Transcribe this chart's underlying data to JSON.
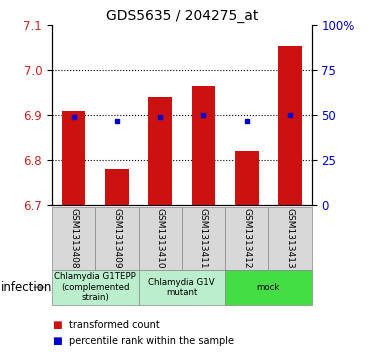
{
  "title": "GDS5635 / 204275_at",
  "samples": [
    "GSM1313408",
    "GSM1313409",
    "GSM1313410",
    "GSM1313411",
    "GSM1313412",
    "GSM1313413"
  ],
  "bar_values": [
    6.91,
    6.78,
    6.94,
    6.965,
    6.82,
    7.055
  ],
  "dot_values": [
    49,
    47,
    49,
    50,
    47,
    50
  ],
  "ylim_left": [
    6.7,
    7.1
  ],
  "ylim_right": [
    0,
    100
  ],
  "yticks_left": [
    6.7,
    6.8,
    6.9,
    7.0,
    7.1
  ],
  "yticks_right": [
    0,
    25,
    50,
    75,
    100
  ],
  "ytick_labels_right": [
    "0",
    "25",
    "50",
    "75",
    "100%"
  ],
  "bar_color": "#CC1111",
  "dot_color": "#0000CC",
  "bar_bottom": 6.7,
  "group_labels": [
    "Chlamydia G1TEPP\n(complemented\nstrain)",
    "Chlamydia G1V\nmutant",
    "mock"
  ],
  "group_colors": [
    "#bbeecc",
    "#bbeecc",
    "#44dd44"
  ],
  "group_sizes": [
    2,
    2,
    2
  ],
  "group_label": "infection",
  "legend_items": [
    {
      "color": "#CC1111",
      "label": "transformed count"
    },
    {
      "color": "#0000CC",
      "label": "percentile rank within the sample"
    }
  ],
  "dotted_values": [
    6.8,
    6.9,
    7.0
  ]
}
